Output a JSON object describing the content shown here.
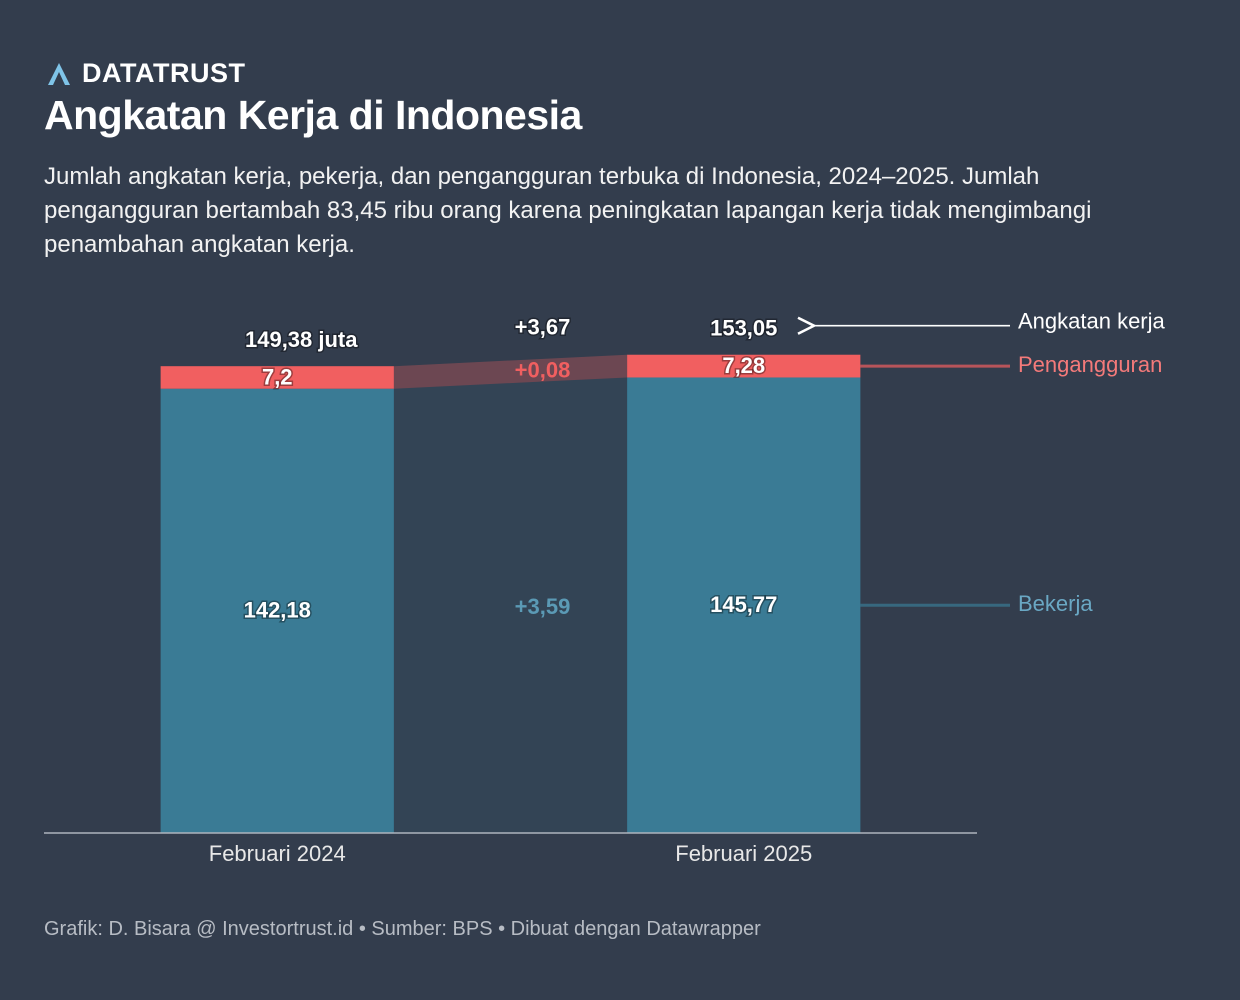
{
  "brand": "DATATRUST",
  "chart_data": {
    "type": "bar",
    "stacked": true,
    "title": "Angkatan Kerja di Indonesia",
    "subtitle": "Jumlah angkatan kerja, pekerja, dan pengangguran terbuka di Indonesia, 2024–2025. Jumlah pengangguran bertambah 83,45 ribu orang karena peningkatan lapangan kerja tidak mengimbangi penambahan angkatan kerja.",
    "categories": [
      "Februari 2024",
      "Februari 2025"
    ],
    "series": [
      {
        "name": "Bekerja",
        "color": "#3a7b95",
        "values": [
          142.18,
          145.77
        ],
        "value_labels": [
          "142,18",
          "145,77"
        ],
        "change": 3.59,
        "change_label": "+3,59"
      },
      {
        "name": "Pengangguran",
        "color": "#f15f60",
        "values": [
          7.2,
          7.28
        ],
        "value_labels": [
          "7,2",
          "7,28"
        ],
        "change": 0.08,
        "change_label": "+0,08"
      }
    ],
    "totals": {
      "name": "Angkatan kerja",
      "values": [
        149.38,
        153.05
      ],
      "value_labels": [
        "149,38 juta",
        "153,05"
      ],
      "change": 3.67,
      "change_label": "+3,67"
    },
    "ylim": [
      0,
      160
    ],
    "footer": "Grafik: D. Bisara @ Investortrust.id • Sumber: BPS • Dibuat dengan Datawrapper"
  }
}
